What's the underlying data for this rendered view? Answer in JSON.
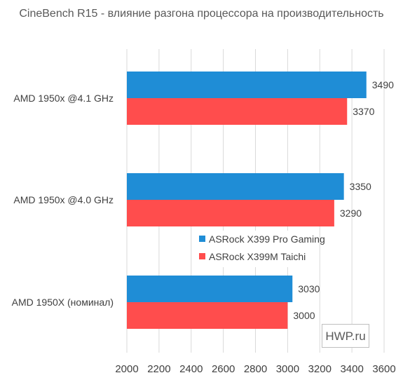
{
  "chart_data": {
    "type": "bar",
    "orientation": "horizontal",
    "title": "CineBench R15 - влияние разгона процессора на производительность",
    "categories": [
      "AMD 1950x @4.1 GHz",
      "AMD 1950x @4.0 GHz",
      "AMD 1950X (номинал)"
    ],
    "series": [
      {
        "name": "ASRock X399 Pro Gaming",
        "color": "#1f8dd6",
        "values": [
          3490,
          3350,
          3030
        ]
      },
      {
        "name": "ASRock X399M Taichi",
        "color": "#ff4d4d",
        "values": [
          3370,
          3290,
          3000
        ]
      }
    ],
    "xlim": [
      2000,
      3600
    ],
    "xticks": [
      2000,
      2200,
      2400,
      2600,
      2800,
      3000,
      3200,
      3400,
      3600
    ],
    "grid": "vertical",
    "legend": "center"
  },
  "watermark": "HWP.ru"
}
